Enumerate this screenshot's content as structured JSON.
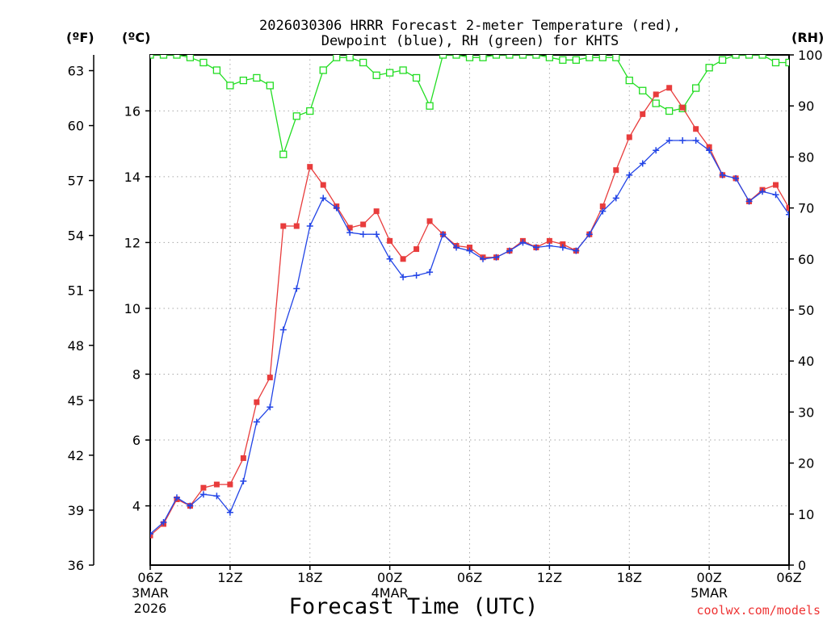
{
  "chart_data": {
    "type": "line",
    "title_line1": "2026030306 HRRR Forecast 2-meter Temperature (red),",
    "title_line2": "Dewpoint (blue), RH (green) for KHTS",
    "left_unit_f": "(ºF)",
    "left_unit_c": "(ºC)",
    "right_unit": "(RH)",
    "xlabel": "Forecast Time (UTC)",
    "watermark": "coolwx.com/models",
    "x_hours_range": [
      0,
      48
    ],
    "c_range": [
      2.2,
      17.7
    ],
    "f_range": [
      36,
      63.86
    ],
    "rh_range": [
      0,
      100
    ],
    "x_ticks": [
      {
        "hour": 0,
        "label": "06Z",
        "sub1": "3MAR",
        "sub2": "2026"
      },
      {
        "hour": 6,
        "label": "12Z"
      },
      {
        "hour": 12,
        "label": "18Z"
      },
      {
        "hour": 18,
        "label": "00Z",
        "sub1": "4MAR"
      },
      {
        "hour": 24,
        "label": "06Z"
      },
      {
        "hour": 30,
        "label": "12Z"
      },
      {
        "hour": 36,
        "label": "18Z"
      },
      {
        "hour": 42,
        "label": "00Z",
        "sub1": "5MAR"
      },
      {
        "hour": 48,
        "label": "06Z"
      }
    ],
    "f_ticks": [
      36,
      39,
      42,
      45,
      48,
      51,
      54,
      57,
      60,
      63
    ],
    "c_ticks": [
      4,
      6,
      8,
      10,
      12,
      14,
      16
    ],
    "rh_ticks": [
      0,
      10,
      20,
      30,
      40,
      50,
      60,
      70,
      80,
      90,
      100
    ],
    "series": [
      {
        "name": "Temperature",
        "unit": "C",
        "color": "#e83c3c",
        "marker": "filled-square",
        "values": [
          3.1,
          3.45,
          4.2,
          4.0,
          4.55,
          4.65,
          4.65,
          5.45,
          7.15,
          7.9,
          12.5,
          12.5,
          14.3,
          13.75,
          13.1,
          12.45,
          12.55,
          12.95,
          12.05,
          11.5,
          11.8,
          12.65,
          12.25,
          11.9,
          11.85,
          11.55,
          11.55,
          11.75,
          12.05,
          11.85,
          12.05,
          11.95,
          11.75,
          12.25,
          13.1,
          14.2,
          15.2,
          15.9,
          16.5,
          16.7,
          16.1,
          15.45,
          14.9,
          14.05,
          13.95,
          13.25,
          13.6,
          13.75,
          13.05
        ]
      },
      {
        "name": "Dewpoint",
        "unit": "C",
        "color": "#2244e6",
        "marker": "plus",
        "values": [
          3.15,
          3.5,
          4.25,
          4.0,
          4.35,
          4.3,
          3.8,
          4.75,
          6.55,
          7.0,
          9.35,
          10.6,
          12.5,
          13.35,
          13.05,
          12.3,
          12.25,
          12.25,
          11.5,
          10.95,
          11.0,
          11.1,
          12.25,
          11.85,
          11.75,
          11.5,
          11.55,
          11.75,
          12.0,
          11.85,
          11.9,
          11.85,
          11.75,
          12.25,
          12.95,
          13.35,
          14.05,
          14.4,
          14.8,
          15.1,
          15.1,
          15.1,
          14.8,
          14.05,
          13.95,
          13.25,
          13.55,
          13.45,
          12.85
        ]
      },
      {
        "name": "RH",
        "unit": "%",
        "color": "#22dd22",
        "marker": "open-square",
        "values": [
          100,
          100,
          100,
          99.5,
          98.5,
          97,
          94,
          95,
          95.5,
          94,
          80.5,
          88,
          89,
          97,
          99.5,
          99.5,
          98.5,
          96,
          96.5,
          97,
          95.5,
          90,
          100,
          100,
          99.5,
          99.5,
          100,
          100,
          100,
          100,
          99.5,
          99,
          99,
          99.5,
          99.5,
          99.5,
          95,
          93,
          90.5,
          89,
          89.5,
          93.5,
          97.5,
          99,
          100,
          100,
          100,
          98.5,
          98.5
        ]
      }
    ]
  }
}
